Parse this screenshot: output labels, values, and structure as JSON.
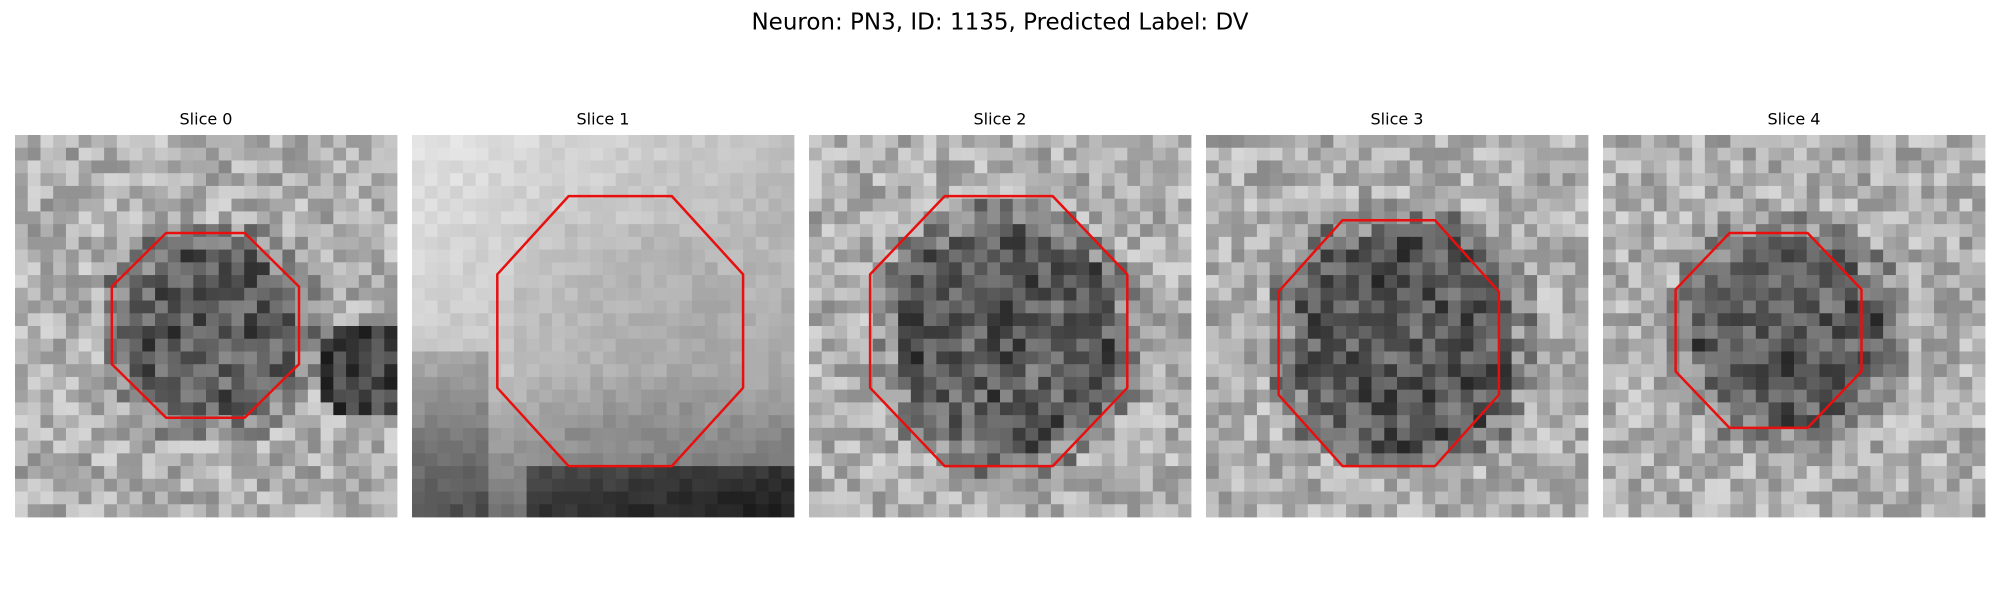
{
  "title": "Neuron: PN3, ID: 1135, Predicted Label: DV",
  "panels": [
    {
      "title": "Slice 0"
    },
    {
      "title": "Slice 1"
    },
    {
      "title": "Slice 2"
    },
    {
      "title": "Slice 3"
    },
    {
      "title": "Slice 4"
    }
  ]
}
